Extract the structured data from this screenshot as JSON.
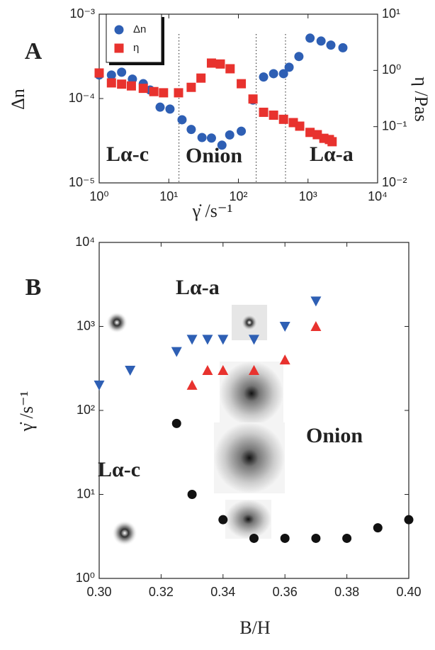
{
  "chart_data": [
    {
      "type": "scatter",
      "panel": "A",
      "log_x": true,
      "log_y": true,
      "log_y2": true,
      "xlabel": "γ̇ /s⁻¹",
      "ylabel": "Δn",
      "y2label": "η /Pas",
      "xlim": [
        1,
        10000
      ],
      "ylim": [
        1e-05,
        0.001
      ],
      "y2lim": [
        0.01,
        10
      ],
      "xticks": [
        {
          "value": 1,
          "label": "10⁰"
        },
        {
          "value": 10,
          "label": "10¹"
        },
        {
          "value": 100,
          "label": "10²"
        },
        {
          "value": 1000,
          "label": "10³"
        },
        {
          "value": 10000,
          "label": "10⁴"
        }
      ],
      "yticks": [
        {
          "value": 1e-05,
          "label": "10⁻⁵"
        },
        {
          "value": 0.0001,
          "label": "10⁻⁴"
        },
        {
          "value": 0.001,
          "label": "10⁻³"
        }
      ],
      "y2ticks": [
        {
          "value": 0.01,
          "label": "10⁻²"
        },
        {
          "value": 0.1,
          "label": "10⁻¹"
        },
        {
          "value": 1,
          "label": "10⁰"
        },
        {
          "value": 10,
          "label": "10¹"
        }
      ],
      "vlines": [
        14,
        180,
        475
      ],
      "annotations": [
        "Lα-c",
        "Onion",
        "Lα-a"
      ],
      "legend": "upper left",
      "series": [
        {
          "name": "Δn",
          "color": "#2e5fb4",
          "marker": "circle",
          "x": [
            1,
            1.5,
            2.1,
            3,
            4.3,
            5.4,
            7.5,
            10.4,
            15.5,
            21,
            30,
            41,
            58,
            75,
            110,
            162,
            230,
            320,
            445,
            535,
            740,
            1070,
            1540,
            2130,
            3170
          ],
          "values": [
            0.00019,
            0.00019,
            0.000205,
            0.00017,
            0.00015,
            0.000126,
            7.9e-05,
            7.5e-05,
            5.6e-05,
            4.3e-05,
            3.45e-05,
            3.4e-05,
            2.8e-05,
            3.7e-05,
            4.1e-05,
            9.6e-05,
            0.00018,
            0.000197,
            0.000197,
            0.000235,
            0.000315,
            0.00052,
            0.00048,
            0.00043,
            0.0004
          ]
        },
        {
          "name": "η",
          "color": "#e8322e",
          "marker": "square",
          "axis": "y2",
          "x": [
            1,
            1.5,
            2.1,
            2.9,
            4.3,
            6.1,
            8.4,
            13.8,
            21,
            29,
            41,
            55,
            76,
            110,
            162,
            230,
            320,
            445,
            615,
            760,
            1070,
            1360,
            1690,
            2030,
            2220
          ],
          "values": [
            0.9,
            0.6,
            0.57,
            0.53,
            0.48,
            0.42,
            0.4,
            0.4,
            0.5,
            0.73,
            1.35,
            1.3,
            1.07,
            0.58,
            0.31,
            0.18,
            0.16,
            0.135,
            0.118,
            0.102,
            0.079,
            0.072,
            0.062,
            0.059,
            0.054
          ]
        }
      ]
    },
    {
      "type": "scatter",
      "panel": "B",
      "log_x": false,
      "log_y": true,
      "xlabel": "B/H",
      "ylabel": "γ̇ /s⁻¹",
      "xlim": [
        0.3,
        0.4
      ],
      "ylim": [
        1,
        10000
      ],
      "xticks": [
        {
          "value": 0.3,
          "label": "0.30"
        },
        0.32,
        0.34,
        0.36,
        0.38,
        {
          "value": 0.4,
          "label": "0.40"
        }
      ],
      "yticks": [
        {
          "value": 1,
          "label": "10⁰"
        },
        {
          "value": 10,
          "label": "10¹"
        },
        {
          "value": 100,
          "label": "10²"
        },
        {
          "value": 1000,
          "label": "10³"
        },
        {
          "value": 10000,
          "label": "10⁴"
        }
      ],
      "annotations": [
        "Lα-a",
        "Onion",
        "Lα-c"
      ],
      "series": [
        {
          "color": "#2e5fb4",
          "marker": "triangle-down",
          "x": [
            0.3,
            0.31,
            0.325,
            0.33,
            0.335,
            0.34,
            0.35,
            0.36,
            0.37
          ],
          "values": [
            200,
            300,
            500,
            700,
            700,
            700,
            700,
            1000,
            2000
          ]
        },
        {
          "color": "#e8322e",
          "marker": "triangle-up",
          "x": [
            0.33,
            0.335,
            0.34,
            0.35,
            0.36,
            0.37
          ],
          "values": [
            200,
            300,
            300,
            300,
            400,
            1000
          ]
        },
        {
          "color": "#111111",
          "marker": "circle",
          "x": [
            0.325,
            0.33,
            0.34,
            0.35,
            0.36,
            0.37,
            0.38,
            0.39,
            0.4
          ],
          "values": [
            70,
            10,
            5,
            3,
            3,
            3,
            3,
            4,
            5
          ]
        }
      ]
    }
  ]
}
